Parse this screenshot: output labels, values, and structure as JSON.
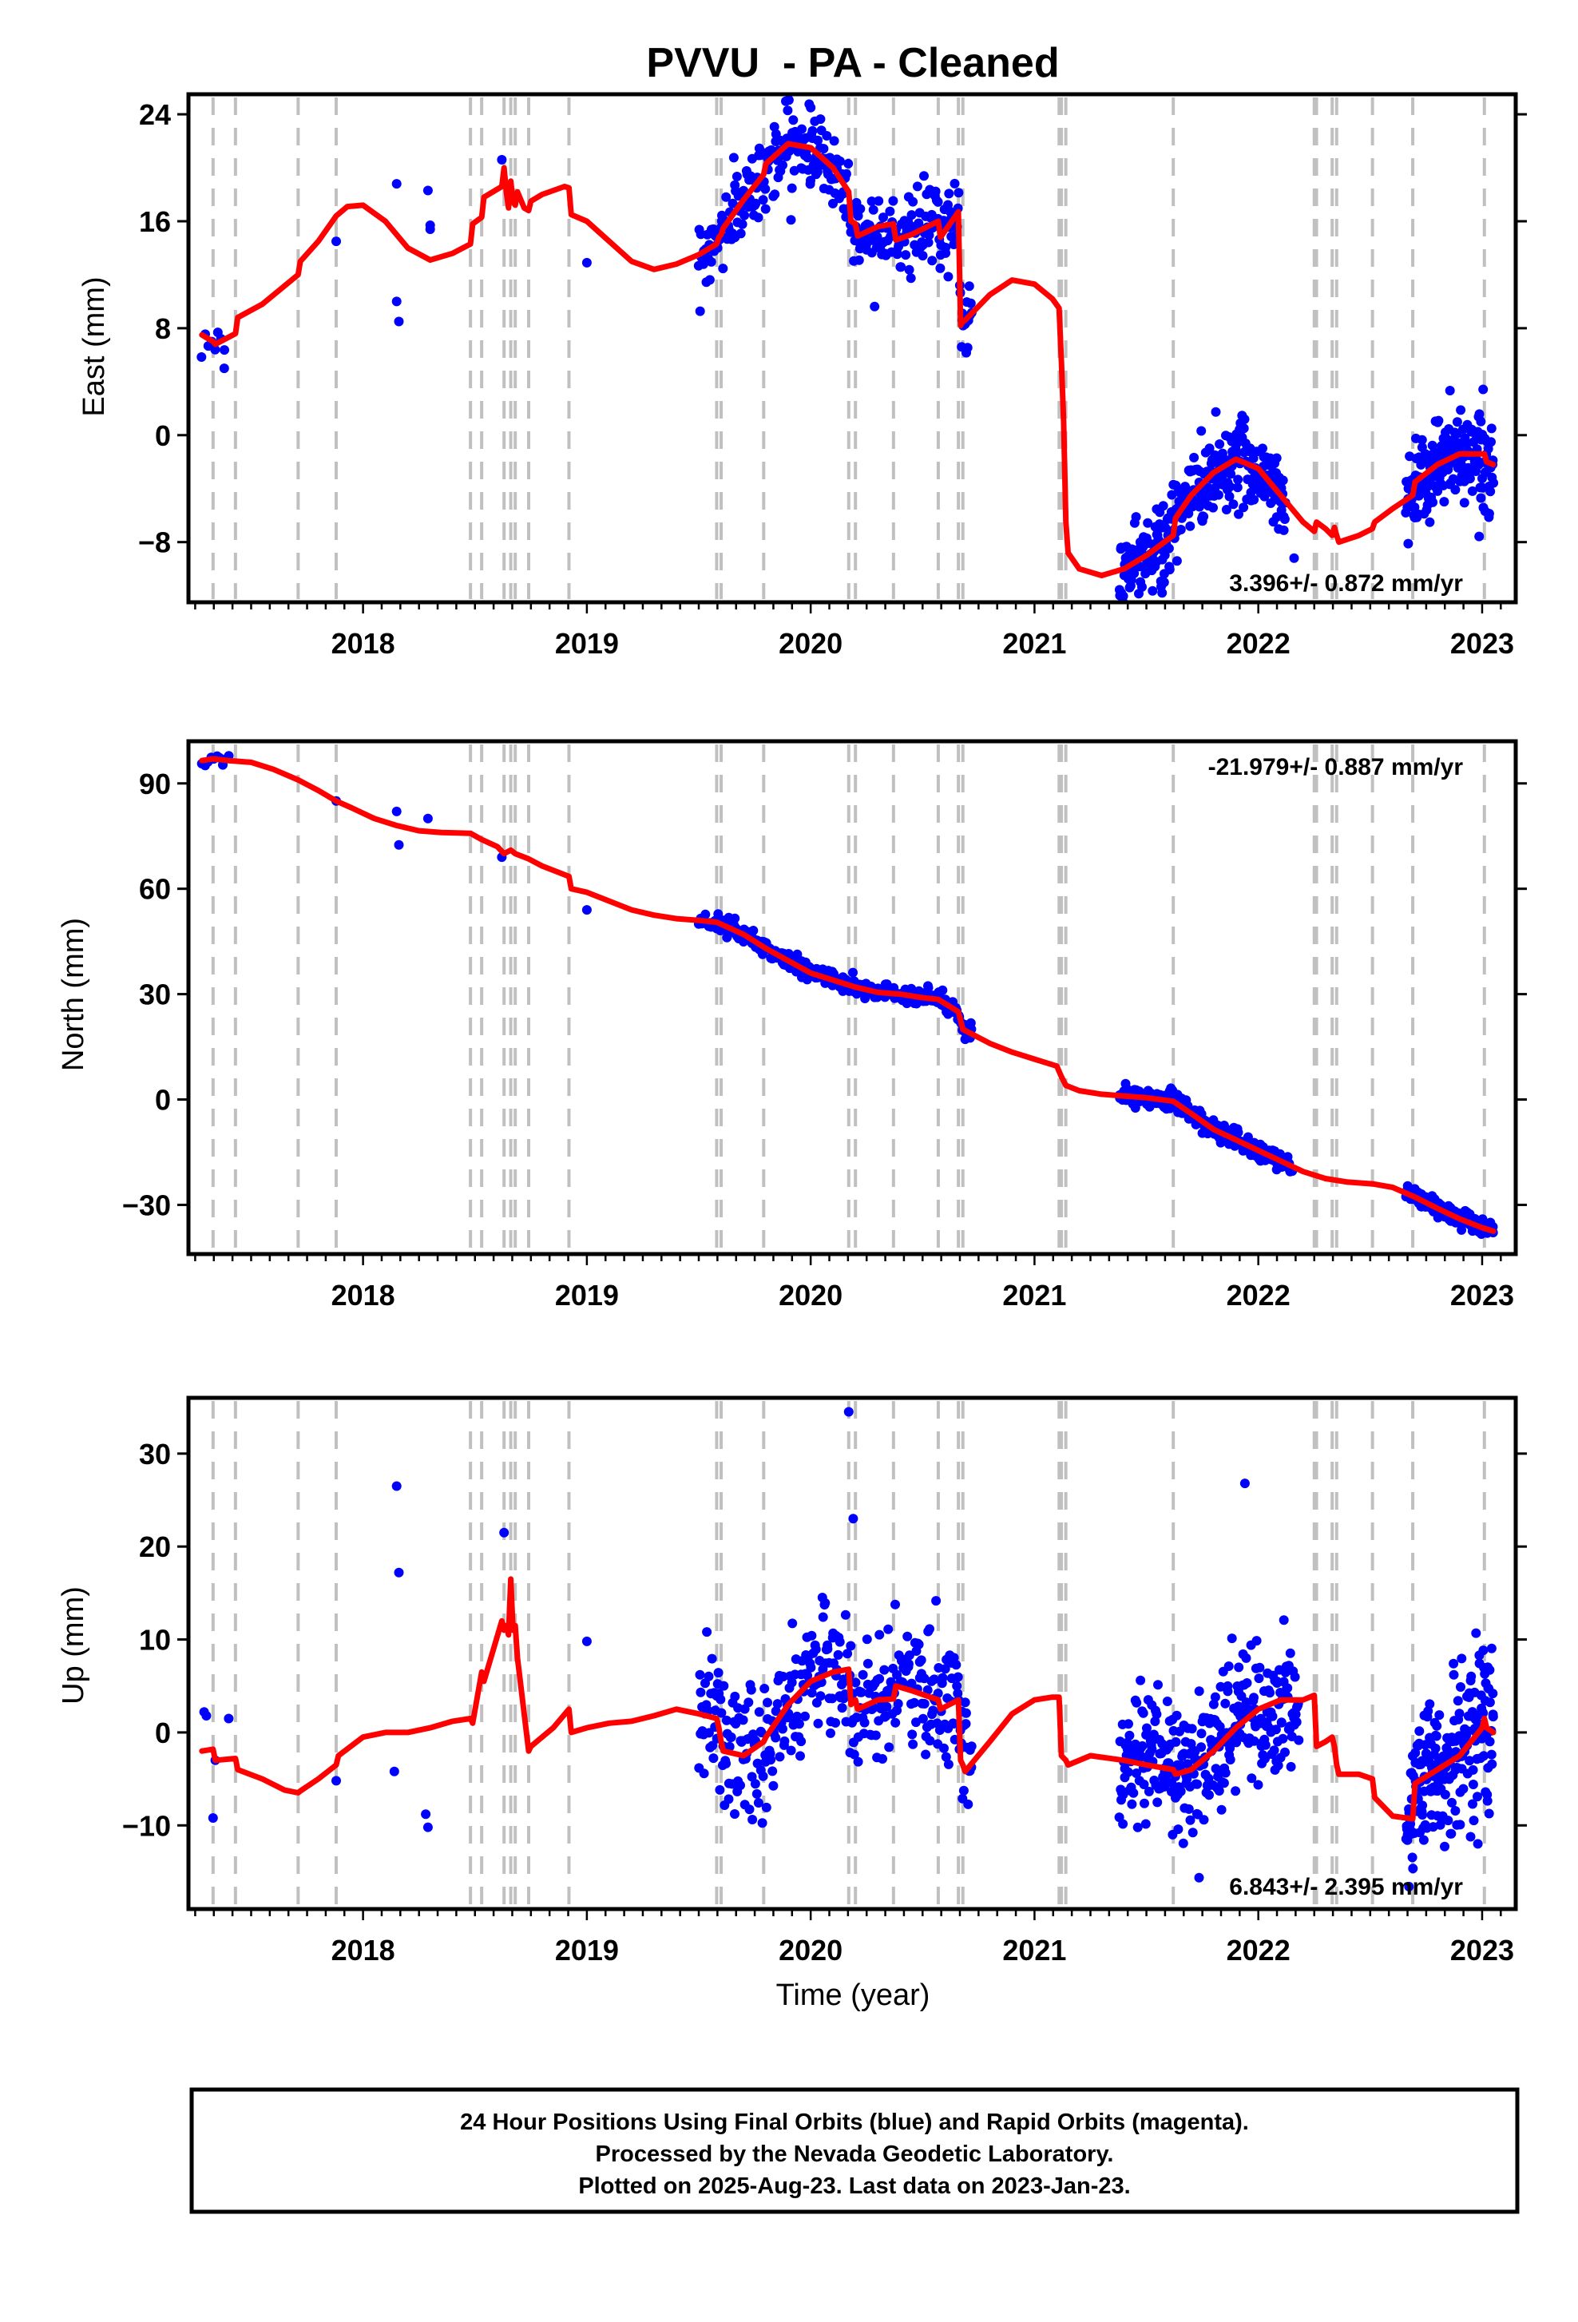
{
  "title": "PVVU  - PA - Cleaned",
  "xlabel": "Time (year)",
  "footer": {
    "line1": "24 Hour Positions Using Final Orbits (blue) and Rapid Orbits (magenta).",
    "line2": "Processed by the Nevada Geodetic Laboratory.",
    "line3": "Plotted on 2025-Aug-23. Last data on 2023-Jan-23."
  },
  "colors": {
    "data_points": "#0000ff",
    "model_line": "#ff0000",
    "event_lines": "#c0c0c0",
    "frame": "#000000"
  },
  "chart_data": [
    {
      "type": "scatter",
      "ylabel": "East (mm)",
      "xlim": [
        2017.22,
        2023.15
      ],
      "ylim": [
        -12.5,
        25.5
      ],
      "xticks": [
        2018,
        2019,
        2020,
        2021,
        2022,
        2023
      ],
      "yticks": [
        24,
        16,
        8,
        0,
        -8
      ],
      "ytick_labels": [
        "24",
        "16",
        "8",
        "0",
        "−8"
      ],
      "rate_label": "3.396+/- 0.872 mm/yr",
      "rate_position": "bottom-right",
      "event_lines": [
        2017.33,
        2017.43,
        2017.71,
        2017.88,
        2018.48,
        2018.53,
        2018.63,
        2018.66,
        2018.68,
        2018.74,
        2018.92,
        2019.58,
        2019.6,
        2019.79,
        2020.17,
        2020.2,
        2020.37,
        2020.57,
        2020.66,
        2020.68,
        2021.11,
        2021.12,
        2021.14,
        2021.62,
        2022.25,
        2022.26,
        2022.33,
        2022.35,
        2022.51,
        2022.69,
        2023.01
      ],
      "model_series": {
        "name": "model",
        "x": [
          2017.28,
          2017.33,
          2017.34,
          2017.43,
          2017.44,
          2017.55,
          2017.71,
          2017.72,
          2017.8,
          2017.88,
          2017.93,
          2018.0,
          2018.1,
          2018.2,
          2018.3,
          2018.4,
          2018.48,
          2018.49,
          2018.53,
          2018.54,
          2018.62,
          2018.63,
          2018.64,
          2018.65,
          2018.66,
          2018.67,
          2018.68,
          2018.69,
          2018.72,
          2018.74,
          2018.75,
          2018.8,
          2018.9,
          2018.92,
          2018.93,
          2019.0,
          2019.1,
          2019.2,
          2019.3,
          2019.4,
          2019.5,
          2019.58,
          2019.59,
          2019.6,
          2019.61,
          2019.7,
          2019.79,
          2019.8,
          2019.9,
          2020.0,
          2020.1,
          2020.17,
          2020.18,
          2020.2,
          2020.21,
          2020.3,
          2020.37,
          2020.38,
          2020.45,
          2020.57,
          2020.58,
          2020.66,
          2020.67,
          2020.68,
          2020.69,
          2020.8,
          2020.9,
          2021.0,
          2021.08,
          2021.11,
          2021.12,
          2021.13,
          2021.14,
          2021.15,
          2021.2,
          2021.3,
          2021.4,
          2021.5,
          2021.62,
          2021.63,
          2021.7,
          2021.8,
          2021.9,
          2022.0,
          2022.1,
          2022.2,
          2022.25,
          2022.26,
          2022.3,
          2022.33,
          2022.34,
          2022.35,
          2022.36,
          2022.45,
          2022.51,
          2022.52,
          2022.6,
          2022.69,
          2022.7,
          2022.8,
          2022.9,
          2023.01,
          2023.02,
          2023.05
        ],
        "y": [
          7.5,
          7.0,
          6.8,
          7.6,
          8.8,
          9.8,
          12.0,
          13.0,
          14.5,
          16.4,
          17.1,
          17.2,
          16.0,
          14.0,
          13.1,
          13.6,
          14.3,
          15.8,
          16.3,
          17.8,
          18.6,
          20.0,
          18.2,
          17.0,
          19.0,
          17.5,
          17.2,
          18.2,
          17.0,
          16.8,
          17.5,
          18.0,
          18.6,
          18.5,
          16.5,
          16.0,
          14.5,
          13.0,
          12.4,
          12.8,
          13.5,
          14.3,
          14.8,
          15.0,
          15.5,
          17.6,
          19.5,
          20.3,
          21.8,
          21.5,
          20.0,
          18.2,
          16.0,
          15.8,
          14.9,
          15.6,
          15.8,
          14.6,
          15.0,
          16.0,
          14.8,
          16.7,
          8.2,
          8.5,
          8.6,
          10.5,
          11.6,
          11.3,
          10.2,
          9.5,
          5.5,
          1.0,
          -6.5,
          -8.8,
          -10.0,
          -10.5,
          -10.0,
          -9.0,
          -7.5,
          -6.2,
          -4.5,
          -2.8,
          -1.8,
          -2.5,
          -4.5,
          -6.5,
          -7.2,
          -6.5,
          -7.0,
          -7.5,
          -6.9,
          -7.5,
          -8.0,
          -7.5,
          -7.0,
          -6.5,
          -5.5,
          -4.5,
          -3.5,
          -2.2,
          -1.4,
          -1.4,
          -2.0,
          -2.2
        ]
      },
      "points_series": {
        "name": "positions",
        "segments": [
          {
            "x0": 2017.28,
            "x1": 2017.38,
            "n": 8,
            "noise": 0.6
          },
          {
            "x0": 2019.5,
            "x1": 2020.72,
            "n": 360,
            "noise": 1.4
          },
          {
            "x0": 2021.38,
            "x1": 2022.12,
            "n": 300,
            "noise": 1.6
          },
          {
            "x0": 2022.66,
            "x1": 2023.05,
            "n": 200,
            "noise": 1.6
          }
        ],
        "outliers": [
          {
            "x": 2017.38,
            "y": 5.0
          },
          {
            "x": 2017.88,
            "y": 14.5
          },
          {
            "x": 2018.15,
            "y": 18.8
          },
          {
            "x": 2018.15,
            "y": 10.0
          },
          {
            "x": 2018.16,
            "y": 8.5
          },
          {
            "x": 2018.29,
            "y": 18.3
          },
          {
            "x": 2018.3,
            "y": 15.7
          },
          {
            "x": 2018.3,
            "y": 15.4
          },
          {
            "x": 2018.62,
            "y": 20.6
          },
          {
            "x": 2019.0,
            "y": 12.9
          },
          {
            "x": 2020.0,
            "y": 24.5
          },
          {
            "x": 2021.57,
            "y": -11.8
          },
          {
            "x": 2021.92,
            "y": 0.9
          },
          {
            "x": 2022.16,
            "y": -9.2
          }
        ]
      }
    },
    {
      "type": "scatter",
      "ylabel": "North (mm)",
      "xlim": [
        2017.22,
        2023.15
      ],
      "ylim": [
        -44,
        102
      ],
      "xticks": [
        2018,
        2019,
        2020,
        2021,
        2022,
        2023
      ],
      "yticks": [
        90,
        60,
        30,
        0,
        -30
      ],
      "ytick_labels": [
        "90",
        "60",
        "30",
        "0",
        "−30"
      ],
      "rate_label": "-21.979+/- 0.887 mm/yr",
      "rate_position": "top-right",
      "event_lines": [
        2017.33,
        2017.43,
        2017.71,
        2017.88,
        2018.48,
        2018.53,
        2018.63,
        2018.66,
        2018.68,
        2018.74,
        2018.92,
        2019.58,
        2019.6,
        2019.79,
        2020.17,
        2020.2,
        2020.37,
        2020.57,
        2020.66,
        2020.68,
        2021.11,
        2021.12,
        2021.14,
        2021.62,
        2022.25,
        2022.26,
        2022.33,
        2022.35,
        2022.51,
        2022.69,
        2023.01
      ],
      "model_series": {
        "name": "model",
        "x": [
          2017.28,
          2017.33,
          2017.4,
          2017.5,
          2017.6,
          2017.71,
          2017.8,
          2017.88,
          2017.95,
          2018.05,
          2018.15,
          2018.25,
          2018.35,
          2018.48,
          2018.53,
          2018.6,
          2018.63,
          2018.66,
          2018.68,
          2018.74,
          2018.8,
          2018.92,
          2018.93,
          2019.0,
          2019.1,
          2019.2,
          2019.3,
          2019.4,
          2019.5,
          2019.58,
          2019.7,
          2019.8,
          2019.9,
          2020.0,
          2020.1,
          2020.2,
          2020.3,
          2020.4,
          2020.5,
          2020.57,
          2020.66,
          2020.68,
          2020.8,
          2020.9,
          2021.0,
          2021.1,
          2021.12,
          2021.14,
          2021.2,
          2021.3,
          2021.4,
          2021.5,
          2021.62,
          2021.7,
          2021.8,
          2021.9,
          2022.0,
          2022.1,
          2022.2,
          2022.3,
          2022.4,
          2022.51,
          2022.6,
          2022.69,
          2022.8,
          2022.9,
          2023.0,
          2023.05
        ],
        "y": [
          96.5,
          97.0,
          96.5,
          96.0,
          94.0,
          91.0,
          88.0,
          85.0,
          83.0,
          80.0,
          78.0,
          76.5,
          76.0,
          75.8,
          74.0,
          72.0,
          70.0,
          71.0,
          70.0,
          68.5,
          66.5,
          63.5,
          60.0,
          59.0,
          56.5,
          54.0,
          52.5,
          51.5,
          51.0,
          50.5,
          47.0,
          43.0,
          39.5,
          36.0,
          34.0,
          32.0,
          30.5,
          30.0,
          29.0,
          28.5,
          25.0,
          20.0,
          16.0,
          13.5,
          11.5,
          9.5,
          6.5,
          4.0,
          2.5,
          1.5,
          1.0,
          0.5,
          -0.5,
          -4.0,
          -8.5,
          -11.5,
          -14.5,
          -17.5,
          -20.5,
          -22.5,
          -23.5,
          -24.0,
          -25.0,
          -27.5,
          -31.0,
          -34.0,
          -36.5,
          -37.5
        ]
      },
      "points_series": {
        "name": "positions",
        "segments": [
          {
            "x0": 2017.28,
            "x1": 2017.4,
            "n": 10,
            "noise": 0.9
          },
          {
            "x0": 2019.5,
            "x1": 2020.72,
            "n": 360,
            "noise": 1.3
          },
          {
            "x0": 2021.38,
            "x1": 2022.15,
            "n": 300,
            "noise": 1.3
          },
          {
            "x0": 2022.66,
            "x1": 2023.05,
            "n": 200,
            "noise": 1.2
          }
        ],
        "outliers": [
          {
            "x": 2017.88,
            "y": 85.0
          },
          {
            "x": 2018.15,
            "y": 82.0
          },
          {
            "x": 2018.16,
            "y": 72.5
          },
          {
            "x": 2018.29,
            "y": 80.0
          },
          {
            "x": 2018.62,
            "y": 69.0
          },
          {
            "x": 2019.0,
            "y": 54.0
          }
        ]
      }
    },
    {
      "type": "scatter",
      "ylabel": "Up (mm)",
      "xlim": [
        2017.22,
        2023.15
      ],
      "ylim": [
        -19,
        36
      ],
      "xticks": [
        2018,
        2019,
        2020,
        2021,
        2022,
        2023
      ],
      "yticks": [
        30,
        20,
        10,
        0,
        -10
      ],
      "ytick_labels": [
        "30",
        "20",
        "10",
        "0",
        "−10"
      ],
      "rate_label": "6.843+/- 2.395 mm/yr",
      "rate_position": "bottom-right",
      "event_lines": [
        2017.33,
        2017.43,
        2017.71,
        2017.88,
        2018.48,
        2018.53,
        2018.63,
        2018.66,
        2018.68,
        2018.74,
        2018.92,
        2019.58,
        2019.6,
        2019.79,
        2020.17,
        2020.2,
        2020.37,
        2020.57,
        2020.66,
        2020.68,
        2021.11,
        2021.12,
        2021.14,
        2021.62,
        2022.25,
        2022.26,
        2022.33,
        2022.35,
        2022.51,
        2022.69,
        2023.01
      ],
      "model_series": {
        "name": "model",
        "x": [
          2017.28,
          2017.33,
          2017.34,
          2017.43,
          2017.44,
          2017.55,
          2017.65,
          2017.71,
          2017.72,
          2017.8,
          2017.88,
          2017.89,
          2018.0,
          2018.1,
          2018.2,
          2018.3,
          2018.4,
          2018.48,
          2018.49,
          2018.53,
          2018.54,
          2018.62,
          2018.63,
          2018.64,
          2018.65,
          2018.66,
          2018.67,
          2018.68,
          2018.69,
          2018.72,
          2018.74,
          2018.75,
          2018.85,
          2018.92,
          2018.93,
          2019.0,
          2019.1,
          2019.2,
          2019.3,
          2019.4,
          2019.5,
          2019.58,
          2019.59,
          2019.6,
          2019.61,
          2019.7,
          2019.79,
          2019.8,
          2019.9,
          2020.0,
          2020.1,
          2020.17,
          2020.18,
          2020.2,
          2020.21,
          2020.3,
          2020.37,
          2020.38,
          2020.45,
          2020.57,
          2020.58,
          2020.66,
          2020.67,
          2020.68,
          2020.69,
          2020.8,
          2020.9,
          2021.0,
          2021.08,
          2021.11,
          2021.12,
          2021.14,
          2021.15,
          2021.25,
          2021.4,
          2021.5,
          2021.62,
          2021.63,
          2021.7,
          2021.8,
          2021.9,
          2022.0,
          2022.1,
          2022.2,
          2022.25,
          2022.26,
          2022.3,
          2022.33,
          2022.34,
          2022.35,
          2022.36,
          2022.45,
          2022.51,
          2022.52,
          2022.6,
          2022.69,
          2022.7,
          2022.8,
          2022.9,
          2023.0,
          2023.01,
          2023.02,
          2023.05
        ],
        "y": [
          -2.0,
          -1.8,
          -3.0,
          -2.8,
          -4.0,
          -5.0,
          -6.2,
          -6.5,
          -6.3,
          -5.0,
          -3.5,
          -2.5,
          -0.5,
          0.0,
          0.0,
          0.5,
          1.2,
          1.5,
          1.0,
          6.5,
          5.5,
          12.0,
          11.0,
          11.5,
          10.5,
          16.5,
          11.0,
          11.5,
          8.0,
          2.0,
          -2.0,
          -1.5,
          0.5,
          2.5,
          0.0,
          0.5,
          1.0,
          1.2,
          1.8,
          2.5,
          2.0,
          1.5,
          0.5,
          -1.0,
          -2.0,
          -2.5,
          -1.0,
          -0.5,
          3.0,
          5.5,
          6.5,
          6.8,
          3.0,
          3.5,
          2.5,
          3.5,
          3.6,
          5.0,
          4.5,
          3.5,
          2.5,
          3.5,
          -3.0,
          -3.5,
          -4.2,
          -1.0,
          2.0,
          3.5,
          3.8,
          3.8,
          -2.5,
          -3.0,
          -3.5,
          -2.5,
          -3.0,
          -3.5,
          -4.0,
          -4.5,
          -4.0,
          -2.0,
          0.5,
          2.5,
          3.5,
          3.5,
          4.0,
          -1.5,
          -1.0,
          -0.5,
          -1.5,
          -3.5,
          -4.5,
          -4.5,
          -5.0,
          -7.0,
          -9.0,
          -9.3,
          -5.5,
          -4.0,
          -2.5,
          0.5,
          1.5,
          0.5,
          0.0
        ]
      },
      "points_series": {
        "name": "positions",
        "segments": [
          {
            "x0": 2019.5,
            "x1": 2020.72,
            "n": 360,
            "noise": 3.6
          },
          {
            "x0": 2021.38,
            "x1": 2022.18,
            "n": 320,
            "noise": 3.6
          },
          {
            "x0": 2022.66,
            "x1": 2023.05,
            "n": 220,
            "noise": 4.0
          }
        ],
        "outliers": [
          {
            "x": 2017.29,
            "y": 2.2
          },
          {
            "x": 2017.3,
            "y": 1.8
          },
          {
            "x": 2017.33,
            "y": -9.2
          },
          {
            "x": 2017.34,
            "y": -3.0
          },
          {
            "x": 2017.4,
            "y": 1.5
          },
          {
            "x": 2017.88,
            "y": -5.2
          },
          {
            "x": 2018.15,
            "y": 26.5
          },
          {
            "x": 2018.16,
            "y": 17.2
          },
          {
            "x": 2018.14,
            "y": -4.2
          },
          {
            "x": 2018.28,
            "y": -8.8
          },
          {
            "x": 2018.29,
            "y": -10.2
          },
          {
            "x": 2018.63,
            "y": 21.5
          },
          {
            "x": 2019.0,
            "y": 9.8
          },
          {
            "x": 2020.17,
            "y": 34.5
          },
          {
            "x": 2020.19,
            "y": 23.0
          },
          {
            "x": 2021.94,
            "y": 26.8
          }
        ]
      }
    }
  ]
}
